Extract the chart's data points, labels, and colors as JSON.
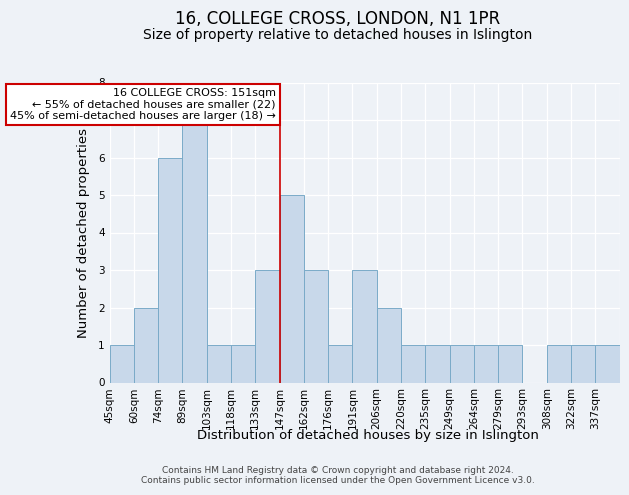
{
  "title": "16, COLLEGE CROSS, LONDON, N1 1PR",
  "subtitle": "Size of property relative to detached houses in Islington",
  "xlabel": "Distribution of detached houses by size in Islington",
  "ylabel": "Number of detached properties",
  "bin_labels": [
    "45sqm",
    "60sqm",
    "74sqm",
    "89sqm",
    "103sqm",
    "118sqm",
    "133sqm",
    "147sqm",
    "162sqm",
    "176sqm",
    "191sqm",
    "206sqm",
    "220sqm",
    "235sqm",
    "249sqm",
    "264sqm",
    "279sqm",
    "293sqm",
    "308sqm",
    "322sqm",
    "337sqm"
  ],
  "bar_heights": [
    1,
    2,
    6,
    7,
    1,
    1,
    3,
    5,
    3,
    1,
    3,
    2,
    1,
    1,
    1,
    1,
    1,
    0,
    1,
    1,
    1
  ],
  "bar_color": "#c8d8ea",
  "bar_edge_color": "#7aaac8",
  "ref_line_index": 7,
  "ref_line_color": "#cc0000",
  "annotation_lines": [
    "16 COLLEGE CROSS: 151sqm",
    "← 55% of detached houses are smaller (22)",
    "45% of semi-detached houses are larger (18) →"
  ],
  "annotation_box_facecolor": "#ffffff",
  "annotation_box_edgecolor": "#cc0000",
  "ylim": [
    0,
    8
  ],
  "yticks": [
    0,
    1,
    2,
    3,
    4,
    5,
    6,
    7,
    8
  ],
  "footer_lines": [
    "Contains HM Land Registry data © Crown copyright and database right 2024.",
    "Contains public sector information licensed under the Open Government Licence v3.0."
  ],
  "bg_color": "#eef2f7",
  "title_fontsize": 12,
  "subtitle_fontsize": 10,
  "axis_label_fontsize": 9.5,
  "tick_fontsize": 7.5,
  "annotation_fontsize": 8,
  "footer_fontsize": 6.5
}
